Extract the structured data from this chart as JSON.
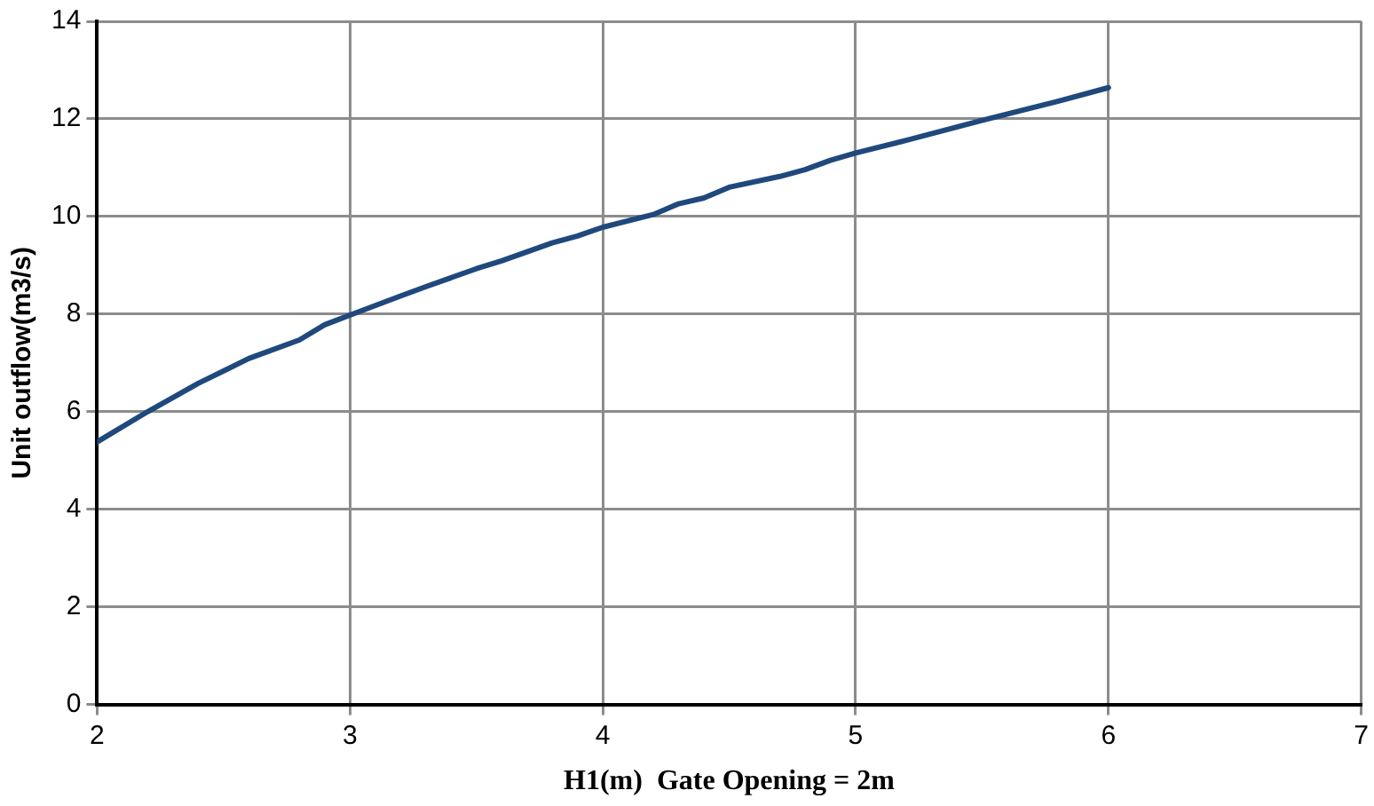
{
  "chart_data": {
    "type": "line",
    "xlabel": "H1(m)  Gate Opening = 2m",
    "ylabel": "Unit outflow(m3/s)",
    "x": [
      2,
      2.2,
      2.4,
      2.6,
      2.8,
      2.9,
      3,
      3.2,
      3.3,
      3.5,
      3.6,
      3.8,
      3.9,
      4,
      4.2,
      4.3,
      4.4,
      4.5,
      4.7,
      4.8,
      4.9,
      5,
      5.2,
      5.5,
      5.8,
      6
    ],
    "series": [
      {
        "color": "#1f497d",
        "values": [
          5.38,
          6.0,
          6.58,
          7.09,
          7.47,
          7.78,
          7.98,
          8.37,
          8.56,
          8.93,
          9.09,
          9.46,
          9.6,
          9.78,
          10.04,
          10.26,
          10.38,
          10.6,
          10.82,
          10.96,
          11.15,
          11.3,
          11.56,
          11.97,
          12.36,
          12.64
        ]
      }
    ],
    "xlim": [
      2,
      7
    ],
    "xticks": [
      2,
      3,
      4,
      5,
      6,
      7
    ],
    "ylim": [
      0,
      14
    ],
    "yticks": [
      0,
      2,
      4,
      6,
      8,
      10,
      12,
      14
    ],
    "grid": true,
    "legend": false,
    "marker": "none",
    "line_style": "solid"
  }
}
